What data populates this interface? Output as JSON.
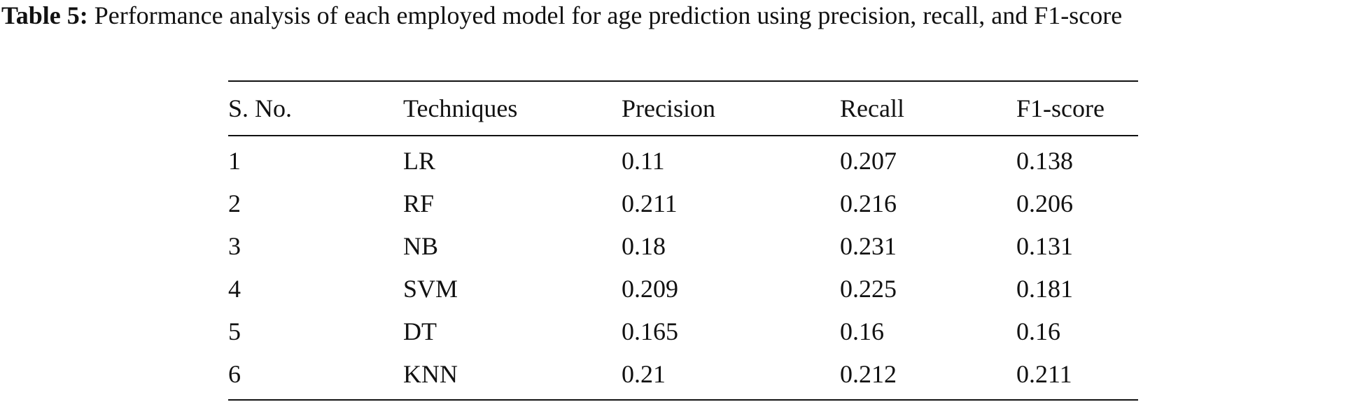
{
  "caption": {
    "label": "Table 5:",
    "text": "Performance analysis of each employed model for age prediction using precision, recall, and F1-score"
  },
  "table": {
    "headers": [
      "S. No.",
      "Techniques",
      "Precision",
      "Recall",
      "F1-score"
    ],
    "rows": [
      [
        "1",
        "LR",
        "0.11",
        "0.207",
        "0.138"
      ],
      [
        "2",
        "RF",
        "0.211",
        "0.216",
        "0.206"
      ],
      [
        "3",
        "NB",
        "0.18",
        "0.231",
        "0.131"
      ],
      [
        "4",
        "SVM",
        "0.209",
        "0.225",
        "0.181"
      ],
      [
        "5",
        "DT",
        "0.165",
        "0.16",
        "0.16"
      ],
      [
        "6",
        "KNN",
        "0.21",
        "0.212",
        "0.211"
      ]
    ]
  }
}
